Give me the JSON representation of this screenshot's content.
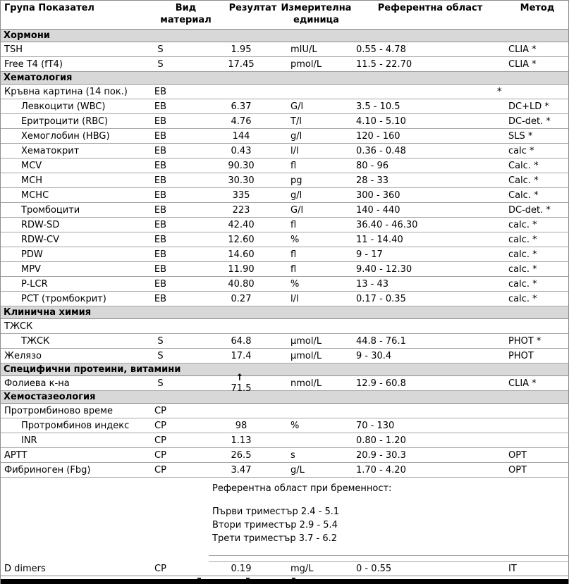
{
  "table": {
    "headers": {
      "group": "Група Показател",
      "material": "Вид\nматериал",
      "result": "Резултат",
      "unit": "Измерителна\nединица",
      "reference": "Референтна област",
      "method": "Метод"
    },
    "rows": [
      {
        "type": "section",
        "label": "Хормони"
      },
      {
        "type": "item",
        "label": "TSH",
        "indent": false,
        "material": "S",
        "result": "1.95",
        "unit": "mIU/L",
        "reference": "0.55 - 4.78",
        "method": "CLIA *"
      },
      {
        "type": "item",
        "label": "Free T4 (fT4)",
        "indent": false,
        "material": "S",
        "result": "17.45",
        "unit": "pmol/L",
        "reference": "11.5 - 22.70",
        "method": "CLIA *"
      },
      {
        "type": "section",
        "label": "Хематология"
      },
      {
        "type": "item",
        "label": "Кръвна картина (14 пок.)",
        "indent": false,
        "material": "ЕВ",
        "result": "",
        "unit": "",
        "reference": "",
        "method": "*",
        "method_star_left": true
      },
      {
        "type": "item",
        "label": "Левкоцити (WBC)",
        "indent": true,
        "material": "ЕВ",
        "result": "6.37",
        "unit": "G/l",
        "reference": "3.5 - 10.5",
        "method": "DC+LD *"
      },
      {
        "type": "item",
        "label": "Еритроцити (RBC)",
        "indent": true,
        "material": "ЕВ",
        "result": "4.76",
        "unit": "T/l",
        "reference": "4.10 - 5.10",
        "method": "DC-det. *"
      },
      {
        "type": "item",
        "label": "Хемоглобин (HBG)",
        "indent": true,
        "material": "ЕВ",
        "result": "144",
        "unit": "g/l",
        "reference": "120 - 160",
        "method": "SLS *"
      },
      {
        "type": "item",
        "label": "Хематокрит",
        "indent": true,
        "material": "ЕВ",
        "result": "0.43",
        "unit": "l/l",
        "reference": "0.36 - 0.48",
        "method": "calc *"
      },
      {
        "type": "item",
        "label": "MCV",
        "indent": true,
        "material": "ЕВ",
        "result": "90.30",
        "unit": "fl",
        "reference": "80 - 96",
        "method": "Calc. *"
      },
      {
        "type": "item",
        "label": "MCH",
        "indent": true,
        "material": "ЕВ",
        "result": "30.30",
        "unit": "pg",
        "reference": "28 - 33",
        "method": "Calc. *"
      },
      {
        "type": "item",
        "label": "MCHC",
        "indent": true,
        "material": "ЕВ",
        "result": "335",
        "unit": "g/l",
        "reference": "300 - 360",
        "method": "Calc. *"
      },
      {
        "type": "item",
        "label": "Тромбоцити",
        "indent": true,
        "material": "ЕВ",
        "result": "223",
        "unit": "G/l",
        "reference": "140 - 440",
        "method": "DC-det. *"
      },
      {
        "type": "item",
        "label": "RDW-SD",
        "indent": true,
        "material": "ЕВ",
        "result": "42.40",
        "unit": "fl",
        "reference": "36.40 - 46.30",
        "method": "calc. *"
      },
      {
        "type": "item",
        "label": "RDW-CV",
        "indent": true,
        "material": "ЕВ",
        "result": "12.60",
        "unit": "%",
        "reference": "11 - 14.40",
        "method": "calc. *"
      },
      {
        "type": "item",
        "label": "PDW",
        "indent": true,
        "material": "ЕВ",
        "result": "14.60",
        "unit": "fl",
        "reference": "9 - 17",
        "method": "calc. *"
      },
      {
        "type": "item",
        "label": "MPV",
        "indent": true,
        "material": "ЕВ",
        "result": "11.90",
        "unit": "fl",
        "reference": "9.40 - 12.30",
        "method": "calc. *"
      },
      {
        "type": "item",
        "label": "P-LCR",
        "indent": true,
        "material": "ЕВ",
        "result": "40.80",
        "unit": "%",
        "reference": "13 - 43",
        "method": "calc. *"
      },
      {
        "type": "item",
        "label": "PCT (тромбокрит)",
        "indent": true,
        "material": "ЕВ",
        "result": "0.27",
        "unit": "l/l",
        "reference": "0.17 - 0.35",
        "method": "calc. *"
      },
      {
        "type": "section",
        "label": "Клинична химия"
      },
      {
        "type": "item",
        "label": "ТЖСК",
        "indent": false,
        "material": "",
        "result": "",
        "unit": "",
        "reference": "",
        "method": ""
      },
      {
        "type": "item",
        "label": "ТЖСК",
        "indent": true,
        "material": "S",
        "result": "64.8",
        "unit": "µmol/L",
        "reference": "44.8 - 76.1",
        "method": "PHOT *"
      },
      {
        "type": "item",
        "label": "Желязо",
        "indent": false,
        "material": "S",
        "result": "17.4",
        "unit": "µmol/L",
        "reference": "9 - 30.4",
        "method": "PHOT"
      },
      {
        "type": "section",
        "label": "Специфични протеини, витамини"
      },
      {
        "type": "item",
        "label": "Фолиева к-на",
        "indent": false,
        "material": "S",
        "result": "71.5",
        "flag": "↑",
        "unit": "nmol/L",
        "reference": "12.9 - 60.8",
        "method": "CLIA *"
      },
      {
        "type": "section",
        "label": "Хемостазеология"
      },
      {
        "type": "item",
        "label": "Протромбиново време",
        "indent": false,
        "material": "СР",
        "result": "",
        "unit": "",
        "reference": "",
        "method": ""
      },
      {
        "type": "item",
        "label": "Протромбинов индекс",
        "indent": true,
        "material": "СР",
        "result": "98",
        "unit": "%",
        "reference": "70 - 130",
        "method": ""
      },
      {
        "type": "item",
        "label": "INR",
        "indent": true,
        "material": "СР",
        "result": "1.13",
        "unit": "",
        "reference": "0.80 - 1.20",
        "method": ""
      },
      {
        "type": "item",
        "label": "APTT",
        "indent": false,
        "material": "СР",
        "result": "26.5",
        "unit": "s",
        "reference": "20.9 - 30.3",
        "method": "OPT"
      },
      {
        "type": "item",
        "label": "Фибриноген (Fbg)",
        "indent": false,
        "material": "СР",
        "result": "3.47",
        "unit": "g/L",
        "reference": "1.70 - 4.20",
        "method": "OPT"
      },
      {
        "type": "note",
        "title": "Референтна област при бременност:",
        "lines": [
          "Първи триместър 2.4 - 5.1",
          "Втори триместър 2.9 - 5.4",
          "Трети триместър 3.7 - 6.2"
        ]
      },
      {
        "type": "spacer"
      },
      {
        "type": "item",
        "last": true,
        "label": "D dimers",
        "indent": false,
        "material": "СР",
        "result": "0.19",
        "unit": "mg/L",
        "reference": "0 - 0.55",
        "method": "IT"
      }
    ]
  },
  "colors": {
    "section_background": "#d8d8d8",
    "row_border": "#a6a6a6",
    "frame_border": "#8c8c8c",
    "text": "#000000",
    "bottom_bar": "#000000"
  },
  "flags": {
    "high_arrow": "↑"
  }
}
